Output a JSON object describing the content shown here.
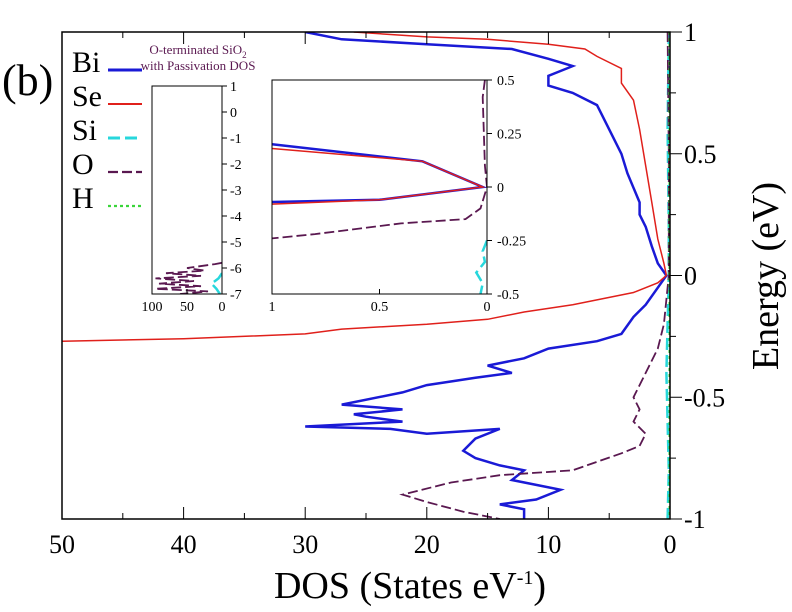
{
  "panel_label": "(b)",
  "legend_title_line1": "O-terminated SiO",
  "legend_title_sub": "2",
  "legend_title_line2": "with Passivation DOS",
  "colors": {
    "Bi": "#1a1ad6",
    "Se": "#e0201b",
    "Si": "#27d7dc",
    "O": "#5a1850",
    "H": "#3ad53a",
    "title": "#5a1850",
    "axis": "#000000"
  },
  "chart_data": [
    {
      "type": "line",
      "role": "main",
      "xlabel_main": "DOS (States eV",
      "xlabel_sup": "-1",
      "xlabel_end": ")",
      "ylabel": "Energy (eV)",
      "xlim": [
        50,
        0
      ],
      "ylim": [
        -1,
        1
      ],
      "x_ticks": [
        50,
        40,
        30,
        20,
        10,
        0
      ],
      "y_ticks": [
        1,
        0.5,
        0,
        -0.5,
        -1
      ],
      "legend": [
        "Bi",
        "Se",
        "Si",
        "O",
        "H"
      ],
      "series": [
        {
          "name": "Bi",
          "points": [
            [
              30,
              1.0
            ],
            [
              27,
              0.97
            ],
            [
              20,
              0.95
            ],
            [
              13,
              0.93
            ],
            [
              10,
              0.89
            ],
            [
              8,
              0.86
            ],
            [
              10,
              0.82
            ],
            [
              10,
              0.78
            ],
            [
              8,
              0.75
            ],
            [
              6,
              0.7
            ],
            [
              5,
              0.6
            ],
            [
              4,
              0.5
            ],
            [
              3.5,
              0.42
            ],
            [
              3,
              0.36
            ],
            [
              2.5,
              0.3
            ],
            [
              2.5,
              0.25
            ],
            [
              2,
              0.2
            ],
            [
              1.5,
              0.12
            ],
            [
              1,
              0.05
            ],
            [
              0.3,
              0.0
            ],
            [
              1,
              -0.05
            ],
            [
              2,
              -0.12
            ],
            [
              3,
              -0.17
            ],
            [
              4,
              -0.24
            ],
            [
              6,
              -0.27
            ],
            [
              10,
              -0.3
            ],
            [
              12,
              -0.34
            ],
            [
              15,
              -0.37
            ],
            [
              13,
              -0.4
            ],
            [
              16,
              -0.42
            ],
            [
              20,
              -0.45
            ],
            [
              22,
              -0.48
            ],
            [
              27,
              -0.53
            ],
            [
              22,
              -0.55
            ],
            [
              26,
              -0.57
            ],
            [
              25,
              -0.58
            ],
            [
              22,
              -0.6
            ],
            [
              30,
              -0.62
            ],
            [
              23,
              -0.63
            ],
            [
              20,
              -0.65
            ],
            [
              14,
              -0.63
            ],
            [
              16,
              -0.67
            ],
            [
              17,
              -0.72
            ],
            [
              16,
              -0.75
            ],
            [
              14,
              -0.78
            ],
            [
              12,
              -0.8
            ],
            [
              13,
              -0.84
            ],
            [
              11,
              -0.86
            ],
            [
              9,
              -0.88
            ],
            [
              11,
              -0.92
            ],
            [
              14,
              -0.94
            ],
            [
              12,
              -0.96
            ],
            [
              12,
              -1.0
            ]
          ]
        },
        {
          "name": "Se",
          "points": [
            [
              26,
              1.0
            ],
            [
              20,
              0.98
            ],
            [
              15,
              0.97
            ],
            [
              10,
              0.95
            ],
            [
              7,
              0.93
            ],
            [
              6,
              0.9
            ],
            [
              4,
              0.85
            ],
            [
              4,
              0.79
            ],
            [
              3,
              0.72
            ],
            [
              2.5,
              0.6
            ],
            [
              2,
              0.45
            ],
            [
              1.5,
              0.3
            ],
            [
              1,
              0.15
            ],
            [
              0.5,
              0.05
            ],
            [
              0.3,
              0.0
            ],
            [
              1,
              -0.03
            ],
            [
              3,
              -0.07
            ],
            [
              8,
              -0.12
            ],
            [
              12,
              -0.15
            ],
            [
              15,
              -0.18
            ],
            [
              20,
              -0.2
            ],
            [
              27,
              -0.22
            ],
            [
              30,
              -0.24
            ],
            [
              40,
              -0.26
            ],
            [
              50,
              -0.27
            ]
          ]
        },
        {
          "name": "Si",
          "points": [
            [
              0.1,
              1.0
            ],
            [
              0.2,
              0.6
            ],
            [
              0.1,
              0.2
            ],
            [
              0.1,
              0.0
            ],
            [
              0.3,
              -0.4
            ],
            [
              0.1,
              -0.8
            ],
            [
              0.2,
              -1.0
            ]
          ]
        },
        {
          "name": "O",
          "points": [
            [
              0.2,
              1.0
            ],
            [
              0.1,
              0.5
            ],
            [
              0.1,
              0.0
            ],
            [
              0.5,
              -0.2
            ],
            [
              1,
              -0.3
            ],
            [
              2,
              -0.4
            ],
            [
              2.5,
              -0.45
            ],
            [
              3,
              -0.5
            ],
            [
              2.5,
              -0.55
            ],
            [
              3,
              -0.6
            ],
            [
              2,
              -0.65
            ],
            [
              2.5,
              -0.7
            ],
            [
              4,
              -0.73
            ],
            [
              8,
              -0.8
            ],
            [
              14,
              -0.82
            ],
            [
              18,
              -0.85
            ],
            [
              22,
              -0.9
            ],
            [
              20,
              -0.93
            ],
            [
              17,
              -0.97
            ],
            [
              14,
              -1.0
            ]
          ]
        },
        {
          "name": "H",
          "points": [
            [
              0.05,
              1.0
            ],
            [
              0.05,
              0.5
            ],
            [
              0.05,
              0.0
            ],
            [
              0.05,
              -0.5
            ],
            [
              0.05,
              -1.0
            ]
          ]
        }
      ]
    },
    {
      "type": "line",
      "role": "inset-left",
      "xlim": [
        100,
        0
      ],
      "ylim": [
        -7,
        1
      ],
      "x_ticks": [
        100,
        50,
        0
      ],
      "y_ticks": [
        1,
        0,
        -1,
        -2,
        -3,
        -4,
        -5,
        -6,
        -7
      ],
      "series": [
        {
          "name": "O",
          "points": [
            [
              0,
              -5.8
            ],
            [
              10,
              -5.85
            ],
            [
              50,
              -6.0
            ],
            [
              25,
              -6.1
            ],
            [
              80,
              -6.2
            ],
            [
              30,
              -6.3
            ],
            [
              95,
              -6.4
            ],
            [
              40,
              -6.5
            ],
            [
              90,
              -6.6
            ],
            [
              30,
              -6.7
            ],
            [
              95,
              -6.8
            ],
            [
              20,
              -6.9
            ],
            [
              60,
              -7.0
            ]
          ]
        },
        {
          "name": "Si",
          "points": [
            [
              0,
              -6.2
            ],
            [
              5,
              -6.4
            ],
            [
              15,
              -6.6
            ],
            [
              8,
              -6.8
            ],
            [
              3,
              -7.0
            ]
          ]
        }
      ]
    },
    {
      "type": "line",
      "role": "inset-right",
      "xlim": [
        1,
        0
      ],
      "ylim": [
        -0.5,
        0.5
      ],
      "x_ticks": [
        1,
        0.5,
        0
      ],
      "y_ticks": [
        0.5,
        0.25,
        0,
        -0.25,
        -0.5
      ],
      "series": [
        {
          "name": "Bi",
          "points": [
            [
              1,
              0.2
            ],
            [
              0.3,
              0.12
            ],
            [
              0.02,
              0.0
            ],
            [
              0.5,
              -0.06
            ],
            [
              1,
              -0.07
            ]
          ]
        },
        {
          "name": "Se",
          "points": [
            [
              1,
              0.18
            ],
            [
              0.3,
              0.12
            ],
            [
              0.02,
              0.0
            ],
            [
              0.5,
              -0.06
            ],
            [
              1,
              -0.08
            ]
          ]
        },
        {
          "name": "O",
          "points": [
            [
              0.01,
              0.5
            ],
            [
              0.02,
              0.42
            ],
            [
              0.01,
              0.1
            ],
            [
              0.0,
              0.0
            ],
            [
              0.03,
              -0.1
            ],
            [
              0.1,
              -0.15
            ],
            [
              0.4,
              -0.17
            ],
            [
              0.8,
              -0.22
            ],
            [
              1,
              -0.24
            ]
          ]
        },
        {
          "name": "Si",
          "points": [
            [
              0.0,
              -0.25
            ],
            [
              0.02,
              -0.3
            ],
            [
              0.01,
              -0.35
            ],
            [
              0.05,
              -0.4
            ],
            [
              0.02,
              -0.45
            ],
            [
              0.03,
              -0.5
            ]
          ]
        }
      ]
    }
  ]
}
